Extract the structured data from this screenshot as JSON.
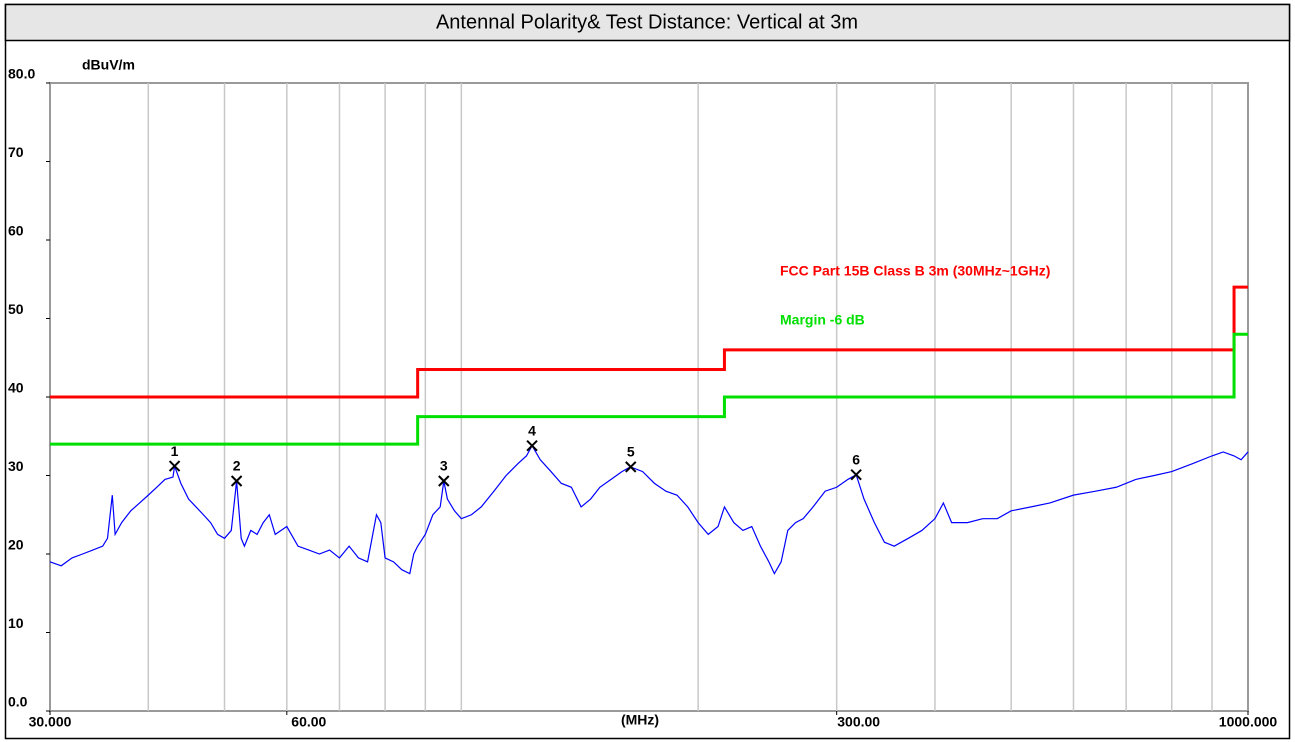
{
  "chart_data": {
    "type": "line",
    "title": "Antennal Polarity& Test Distance: Vertical at 3m",
    "y_label": "dBuV/m",
    "x_label": "(MHz)",
    "log_x": true,
    "xlim": [
      30,
      1000
    ],
    "ylim": [
      0,
      80
    ],
    "xticks": [
      {
        "value": 30,
        "label": "30.000"
      },
      {
        "value": 60,
        "label": "60.00"
      },
      {
        "value": 300,
        "label": "300.00"
      },
      {
        "value": 1000,
        "label": "1000.000"
      }
    ],
    "xgrid": [
      40,
      50,
      60,
      70,
      80,
      90,
      100,
      200,
      300,
      400,
      500,
      600,
      700,
      800,
      900
    ],
    "yticks": [
      {
        "value": 0,
        "label": "0.0"
      },
      10,
      20,
      30,
      40,
      50,
      60,
      70,
      {
        "value": 80,
        "label": "80.0"
      }
    ],
    "series": [
      {
        "name": "FCC Part 15B Class B 3m (30MHz~1GHz)",
        "color": "#ff0000",
        "x": [
          30,
          88,
          88,
          216,
          216,
          960,
          960,
          1000
        ],
        "values": [
          40,
          40,
          43.5,
          43.5,
          46,
          46,
          54,
          54
        ]
      },
      {
        "name": "Margin -6 dB",
        "color": "#00e000",
        "x": [
          30,
          88,
          88,
          216,
          216,
          960,
          960,
          1000
        ],
        "values": [
          34,
          34,
          37.5,
          37.5,
          40,
          40,
          48,
          48
        ]
      },
      {
        "color": "#0000ff",
        "x": [
          30,
          31,
          32,
          33,
          34,
          35,
          35.5,
          36,
          36.3,
          37,
          38,
          39,
          40,
          41,
          42,
          43,
          43.2,
          44,
          45,
          46,
          47,
          48,
          49,
          50,
          51,
          51.8,
          52.5,
          53,
          54,
          55,
          56,
          57,
          58,
          60,
          62,
          64,
          66,
          68,
          70,
          72,
          74,
          76,
          78,
          79,
          80,
          82,
          84,
          86,
          87,
          88,
          90,
          92,
          94,
          95,
          96,
          98,
          100,
          103,
          106,
          110,
          114,
          118,
          121,
          123,
          126,
          130,
          134,
          138,
          142,
          146,
          150,
          155,
          160,
          164,
          170,
          176,
          182,
          188,
          194,
          200,
          206,
          212,
          216,
          222,
          228,
          234,
          240,
          246,
          250,
          255,
          260,
          266,
          272,
          280,
          290,
          300,
          310,
          317.6,
          325,
          335,
          345,
          355,
          370,
          385,
          400,
          410,
          420,
          440,
          460,
          480,
          500,
          530,
          560,
          600,
          640,
          680,
          720,
          760,
          800,
          850,
          900,
          930,
          960,
          980,
          1000
        ],
        "values": [
          19,
          18.5,
          19.5,
          20,
          20.5,
          21,
          22,
          27.5,
          22.5,
          24,
          25.5,
          26.5,
          27.5,
          28.5,
          29.5,
          29.8,
          31.2,
          29,
          27,
          26,
          25,
          24,
          22.5,
          22,
          23,
          29.3,
          22,
          21,
          23,
          22.5,
          24,
          25,
          22.5,
          23.5,
          21,
          20.5,
          20,
          20.5,
          19.5,
          21,
          19.5,
          19,
          25,
          24,
          19.5,
          19,
          18,
          17.5,
          20,
          21,
          22.5,
          25,
          26,
          29.3,
          27,
          25.5,
          24.5,
          25,
          26,
          28,
          30,
          31.5,
          32.5,
          33.8,
          32,
          30.5,
          29,
          28.5,
          26,
          27,
          28.5,
          29.5,
          30.5,
          31.1,
          30.5,
          29,
          28,
          27.5,
          26,
          24,
          22.5,
          23.5,
          26,
          24,
          23,
          23.5,
          21,
          19,
          17.5,
          19,
          23,
          24,
          24.5,
          26,
          28,
          28.5,
          29.5,
          30.1,
          27,
          24,
          21.5,
          21,
          22,
          23,
          24.5,
          26.5,
          24,
          24,
          24.5,
          24.5,
          25.5,
          26,
          26.5,
          27.5,
          28,
          28.5,
          29.5,
          30,
          30.5,
          31.5,
          32.5,
          33,
          32.5,
          32,
          33
        ]
      }
    ],
    "markers": [
      {
        "label": "1",
        "x": 43.2,
        "value": 31.2
      },
      {
        "label": "2",
        "x": 51.8,
        "value": 29.3
      },
      {
        "label": "3",
        "x": 95,
        "value": 29.3
      },
      {
        "label": "4",
        "x": 123,
        "value": 33.8
      },
      {
        "label": "5",
        "x": 164.2,
        "value": 31.1
      },
      {
        "label": "6",
        "x": 317.6,
        "value": 30.1
      }
    ]
  }
}
